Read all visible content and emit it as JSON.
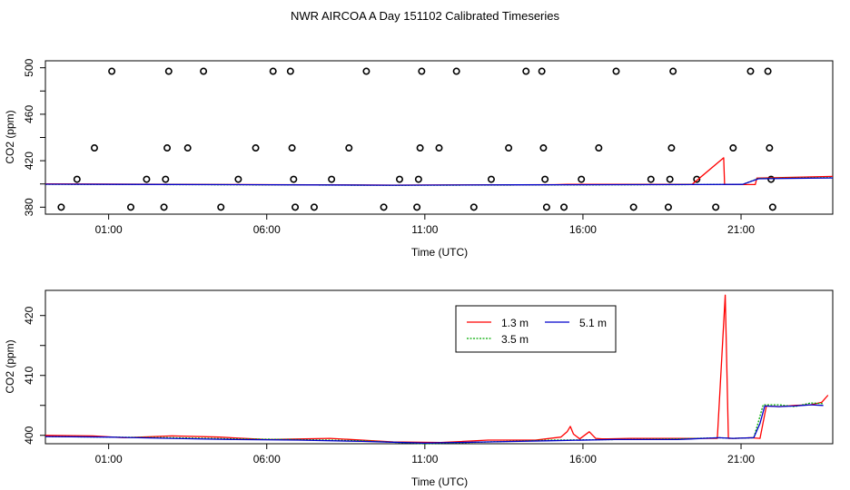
{
  "title": "NWR AIRCOA A  Day 151102  Calibrated Timeseries",
  "chart_data": [
    {
      "type": "scatter",
      "xlabel": "Time (UTC)",
      "ylabel": "CO2 (ppm)",
      "xlim": [
        -1.0,
        23.9
      ],
      "ylim": [
        374,
        506
      ],
      "x_ticks": [
        1,
        6,
        11,
        16,
        21
      ],
      "x_tick_labels": [
        "01:00",
        "06:00",
        "11:00",
        "16:00",
        "21:00"
      ],
      "y_ticks": [
        380,
        420,
        460,
        500
      ],
      "y_tick_labels": [
        "380",
        "420",
        "460",
        "500"
      ],
      "y_minor_ticks": [
        400,
        440,
        480
      ],
      "flag_points": [
        [
          -0.5,
          380
        ],
        [
          0.0,
          404
        ],
        [
          0.55,
          431
        ],
        [
          1.1,
          497
        ],
        [
          1.7,
          380
        ],
        [
          2.2,
          404
        ],
        [
          2.75,
          380
        ],
        [
          2.8,
          404
        ],
        [
          2.85,
          431
        ],
        [
          2.9,
          497
        ],
        [
          3.5,
          431
        ],
        [
          4.0,
          497
        ],
        [
          4.55,
          380
        ],
        [
          5.1,
          404
        ],
        [
          5.65,
          431
        ],
        [
          6.2,
          497
        ],
        [
          6.75,
          497
        ],
        [
          6.8,
          431
        ],
        [
          6.85,
          404
        ],
        [
          6.9,
          380
        ],
        [
          7.5,
          380
        ],
        [
          8.05,
          404
        ],
        [
          8.6,
          431
        ],
        [
          9.15,
          497
        ],
        [
          9.7,
          380
        ],
        [
          10.2,
          404
        ],
        [
          10.75,
          380
        ],
        [
          10.8,
          404
        ],
        [
          10.85,
          431
        ],
        [
          10.9,
          497
        ],
        [
          11.45,
          431
        ],
        [
          12.0,
          497
        ],
        [
          12.55,
          380
        ],
        [
          13.1,
          404
        ],
        [
          13.65,
          431
        ],
        [
          14.2,
          497
        ],
        [
          14.7,
          497
        ],
        [
          14.75,
          431
        ],
        [
          14.8,
          404
        ],
        [
          14.85,
          380
        ],
        [
          15.4,
          380
        ],
        [
          15.95,
          404
        ],
        [
          16.5,
          431
        ],
        [
          17.05,
          497
        ],
        [
          17.6,
          380
        ],
        [
          18.15,
          404
        ],
        [
          18.7,
          380
        ],
        [
          18.75,
          404
        ],
        [
          18.8,
          431
        ],
        [
          18.85,
          497
        ],
        [
          19.6,
          404
        ],
        [
          20.2,
          380
        ],
        [
          20.75,
          431
        ],
        [
          21.3,
          497
        ],
        [
          21.85,
          497
        ],
        [
          21.9,
          431
        ],
        [
          21.95,
          404
        ],
        [
          22.0,
          380
        ]
      ],
      "series": [
        {
          "name": "1.3 m",
          "color": "#ff0000",
          "x": [
            -1.0,
            5.0,
            10.0,
            14.0,
            15.1,
            15.5,
            19.45,
            20.45,
            20.48,
            21.45,
            21.5,
            23.9
          ],
          "y": [
            400.0,
            399.5,
            399.0,
            399.3,
            399.4,
            399.6,
            399.6,
            422.5,
            399.5,
            399.5,
            405.0,
            406.5
          ]
        },
        {
          "name": "3.5 m",
          "color": "#00aa00",
          "x": [
            -1.0,
            5.0,
            10.0,
            14.0,
            19.45,
            21.05,
            21.55,
            23.9
          ],
          "y": [
            399.7,
            399.3,
            398.8,
            399.1,
            399.5,
            399.6,
            404.8,
            405.5
          ]
        },
        {
          "name": "5.1 m",
          "color": "#0000cc",
          "x": [
            -1.0,
            5.0,
            10.0,
            14.0,
            19.45,
            21.05,
            21.55,
            23.9
          ],
          "y": [
            399.8,
            399.4,
            398.9,
            399.2,
            399.5,
            399.6,
            404.5,
            405.2
          ]
        }
      ]
    },
    {
      "type": "line",
      "xlabel": "Time (UTC)",
      "ylabel": "CO2 (ppm)",
      "xlim": [
        -1.0,
        23.9
      ],
      "ylim": [
        398.6,
        424.2
      ],
      "x_ticks": [
        1,
        6,
        11,
        16,
        21
      ],
      "x_tick_labels": [
        "01:00",
        "06:00",
        "11:00",
        "16:00",
        "21:00"
      ],
      "y_ticks": [
        400,
        410,
        420
      ],
      "y_tick_labels": [
        "400",
        "410",
        "420"
      ],
      "y_minor_ticks": [
        405,
        415
      ],
      "legend": {
        "position": "top-right",
        "entries": [
          "1.3 m",
          "3.5 m",
          "5.1 m"
        ]
      },
      "series": [
        {
          "name": "1.3 m",
          "color": "#ff0000",
          "x": [
            -1.0,
            0.5,
            1.5,
            3.0,
            4.5,
            6.0,
            8.0,
            10.0,
            11.5,
            13.0,
            14.5,
            15.3,
            15.5,
            15.6,
            15.7,
            15.9,
            16.2,
            16.4,
            16.6,
            16.8,
            17.5,
            19.0,
            20.0,
            20.25,
            20.5,
            20.6,
            20.8,
            21.3,
            21.6,
            21.8,
            22.2,
            22.7,
            23.2,
            23.55,
            23.75
          ],
          "y": [
            400.0,
            399.9,
            399.6,
            399.9,
            399.7,
            399.3,
            399.5,
            398.9,
            398.8,
            399.2,
            399.2,
            399.7,
            400.6,
            401.5,
            400.2,
            399.4,
            400.6,
            399.5,
            399.4,
            399.4,
            399.5,
            399.5,
            399.5,
            399.5,
            423.4,
            399.5,
            399.5,
            399.6,
            399.5,
            404.9,
            404.8,
            405.0,
            405.1,
            405.5,
            406.7
          ]
        },
        {
          "name": "3.5 m",
          "color": "#00aa00",
          "x": [
            -1.0,
            1.0,
            3.0,
            5.0,
            7.0,
            9.0,
            11.0,
            13.0,
            15.0,
            17.0,
            19.0,
            20.3,
            20.75,
            21.4,
            21.55,
            21.7,
            22.2,
            22.7,
            23.2,
            23.6
          ],
          "y": [
            399.8,
            399.7,
            399.6,
            399.4,
            399.3,
            399.1,
            398.6,
            398.9,
            399.2,
            399.3,
            399.4,
            399.6,
            399.5,
            399.6,
            402.3,
            405.1,
            405.1,
            404.8,
            405.4,
            405.3
          ]
        },
        {
          "name": "5.1 m",
          "color": "#0000cc",
          "x": [
            -1.0,
            1.0,
            3.0,
            5.0,
            7.0,
            9.0,
            11.0,
            13.0,
            15.0,
            17.0,
            19.0,
            20.3,
            20.75,
            21.4,
            21.6,
            21.75,
            22.2,
            22.7,
            23.2,
            23.6
          ],
          "y": [
            399.8,
            399.7,
            399.5,
            399.3,
            399.2,
            399.0,
            398.7,
            398.9,
            399.1,
            399.3,
            399.3,
            399.6,
            399.5,
            399.6,
            402.0,
            404.9,
            404.8,
            404.9,
            405.1,
            405.0
          ]
        }
      ]
    }
  ]
}
